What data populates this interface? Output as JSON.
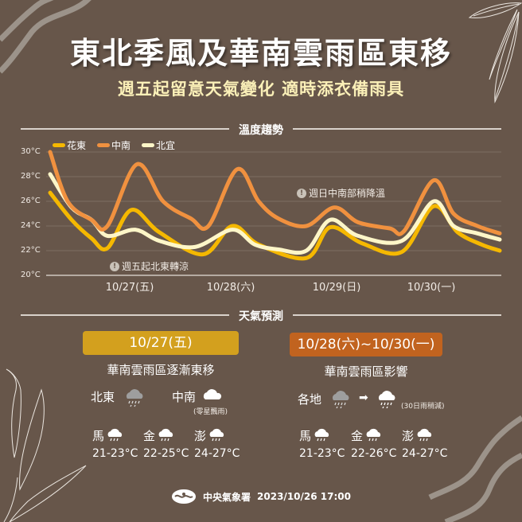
{
  "header": {
    "title": "東北季風及華南雲雨區東移",
    "subtitle": "週五起留意天氣變化 適時添衣備雨具"
  },
  "temperature_section": {
    "heading": "溫度趨勢",
    "notes": {
      "north_east": "週五起北東轉涼",
      "central_south": "週日中南部稍降溫"
    }
  },
  "chart_data": {
    "type": "line",
    "title": "溫度趨勢",
    "xlabel": "",
    "ylabel": "",
    "ylim": [
      20,
      30
    ],
    "y_ticks": [
      "30°C",
      "28°C",
      "26°C",
      "24°C",
      "22°C",
      "20°C"
    ],
    "x_ticks": [
      "10/27(五)",
      "10/28(六)",
      "10/29(日)",
      "10/30(一)"
    ],
    "grid": true,
    "legend_position": "top-left",
    "series": [
      {
        "name": "花東",
        "color": "#f5b800",
        "points": [
          [
            63,
            26.7
          ],
          [
            90,
            24.5
          ],
          [
            115,
            23.0
          ],
          [
            135,
            22.2
          ],
          [
            165,
            25.3
          ],
          [
            200,
            23.5
          ],
          [
            255,
            21.7
          ],
          [
            292,
            24.0
          ],
          [
            325,
            22.5
          ],
          [
            385,
            21.4
          ],
          [
            415,
            23.9
          ],
          [
            455,
            22.6
          ],
          [
            505,
            21.9
          ],
          [
            545,
            25.6
          ],
          [
            575,
            23.5
          ],
          [
            605,
            22.5
          ],
          [
            628,
            22.0
          ]
        ]
      },
      {
        "name": "中南",
        "color": "#f0913f",
        "points": [
          [
            63,
            30.0
          ],
          [
            85,
            26.0
          ],
          [
            115,
            24.5
          ],
          [
            135,
            24.0
          ],
          [
            172,
            29.0
          ],
          [
            205,
            26.0
          ],
          [
            240,
            24.6
          ],
          [
            262,
            24.0
          ],
          [
            298,
            28.6
          ],
          [
            325,
            26.0
          ],
          [
            350,
            24.6
          ],
          [
            385,
            24.0
          ],
          [
            420,
            25.5
          ],
          [
            450,
            24.3
          ],
          [
            490,
            23.8
          ],
          [
            508,
            23.6
          ],
          [
            545,
            27.7
          ],
          [
            570,
            25.0
          ],
          [
            600,
            24.0
          ],
          [
            628,
            23.4
          ]
        ]
      },
      {
        "name": "北宜",
        "color": "#fdf6c8",
        "points": [
          [
            63,
            28.2
          ],
          [
            90,
            25.5
          ],
          [
            115,
            24.5
          ],
          [
            135,
            23.2
          ],
          [
            170,
            23.7
          ],
          [
            200,
            22.8
          ],
          [
            245,
            22.3
          ],
          [
            292,
            23.7
          ],
          [
            320,
            22.5
          ],
          [
            350,
            22.1
          ],
          [
            385,
            22.0
          ],
          [
            415,
            24.5
          ],
          [
            450,
            23.2
          ],
          [
            505,
            22.8
          ],
          [
            545,
            26.0
          ],
          [
            570,
            24.0
          ],
          [
            600,
            23.4
          ],
          [
            628,
            22.9
          ]
        ]
      }
    ]
  },
  "forecast_section": {
    "heading": "天氣預測",
    "panels": [
      {
        "date": "10/27(五)",
        "color": "#d3a01e",
        "summary": "華南雲雨區逐漸東移",
        "regions": [
          {
            "name": "北東",
            "icon": "rain-cloud-gray-icon"
          },
          {
            "name": "中南",
            "icon": "cloud-icon",
            "note": "(零星飄雨)"
          }
        ],
        "islands": [
          {
            "name": "馬",
            "icon": "rain-cloud-icon",
            "temp": "21-23°C"
          },
          {
            "name": "金",
            "icon": "rain-cloud-icon",
            "temp": "22-25°C"
          },
          {
            "name": "澎",
            "icon": "rain-cloud-icon",
            "temp": "24-27°C"
          }
        ]
      },
      {
        "date": "10/28(六)~10/30(一)",
        "color": "#c1631f",
        "summary": "華南雲雨區影響",
        "regions": [
          {
            "name": "各地",
            "icon": "rain-cloud-gray-icon",
            "arrow": "➡",
            "icon2": "rain-cloud-icon",
            "note": "(30日雨稍減)"
          }
        ],
        "islands": [
          {
            "name": "馬",
            "icon": "rain-cloud-icon",
            "temp": "21-23°C"
          },
          {
            "name": "金",
            "icon": "rain-cloud-icon",
            "temp": "22-26°C"
          },
          {
            "name": "澎",
            "icon": "rain-cloud-icon",
            "temp": "24-27°C"
          }
        ]
      }
    ]
  },
  "footer": {
    "agency": "中央氣象署",
    "timestamp": "2023/10/26 17:00"
  },
  "colors": {
    "background": "#67564a",
    "title": "#ffffff",
    "subtitle": "#fbf0b8"
  }
}
